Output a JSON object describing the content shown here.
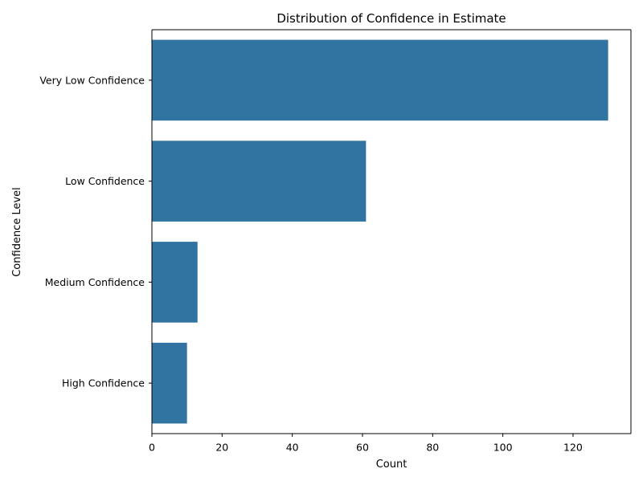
{
  "chart_data": {
    "type": "bar",
    "orientation": "horizontal",
    "title": "Distribution of Confidence in Estimate",
    "xlabel": "Count",
    "ylabel": "Confidence Level",
    "categories": [
      "Very Low Confidence",
      "Low Confidence",
      "Medium Confidence",
      "High Confidence"
    ],
    "values": [
      130,
      61,
      13,
      10
    ],
    "xlim": [
      0,
      136.5
    ],
    "xticks": [
      0,
      20,
      40,
      60,
      80,
      100,
      120
    ],
    "grid": false,
    "legend": "none",
    "bar_color": "#3274a1"
  }
}
